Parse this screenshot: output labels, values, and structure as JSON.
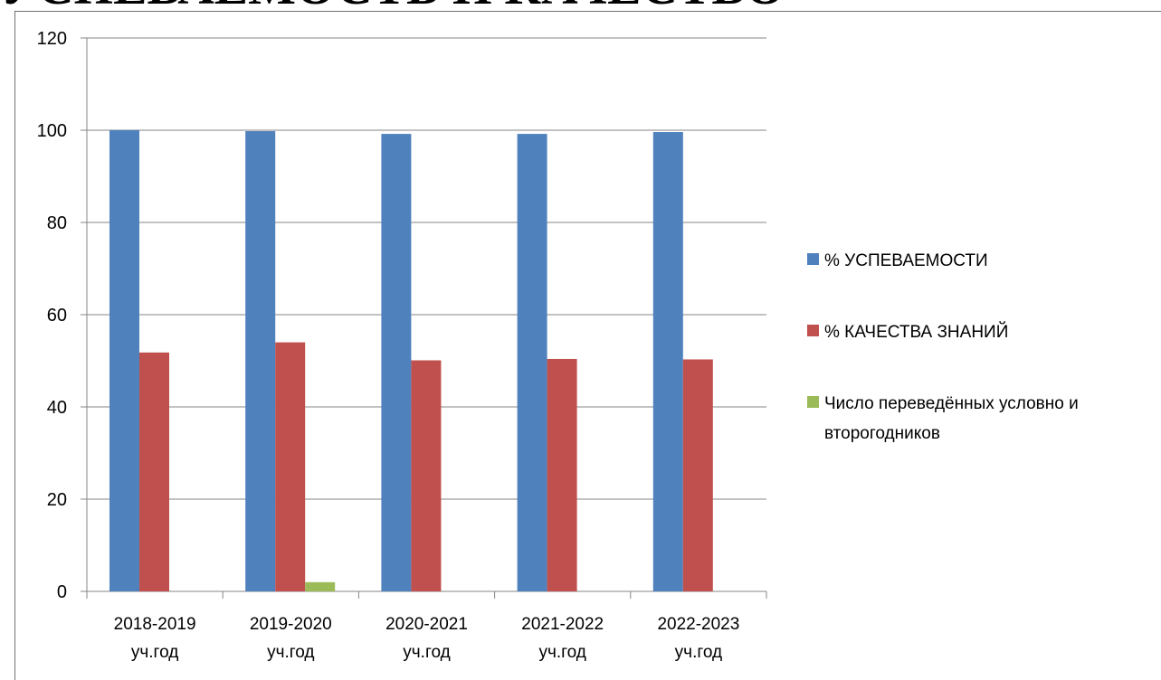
{
  "page_title_fragment": "УСПЕВАЕМОСТЬ И КАЧЕСТВО",
  "chart_data": {
    "type": "bar",
    "categories": [
      [
        "2018-2019",
        "уч.год"
      ],
      [
        "2019-2020",
        "уч.год"
      ],
      [
        "2020-2021",
        "уч.год"
      ],
      [
        "2021-2022",
        "уч.год"
      ],
      [
        "2022-2023",
        "уч.год"
      ]
    ],
    "series": [
      {
        "name": "% УСПЕВАЕМОСТИ",
        "color": "#4F81BD",
        "values": [
          100,
          99.8,
          99.2,
          99.2,
          99.6
        ]
      },
      {
        "name": "% КАЧЕСТВА ЗНАНИЙ",
        "color": "#C0504D",
        "values": [
          51.8,
          54,
          50.1,
          50.4,
          50.3
        ]
      },
      {
        "name": [
          "Число переведённых условно и",
          "второгодников"
        ],
        "color": "#9BBB59",
        "values": [
          0,
          2,
          0,
          0,
          0
        ]
      }
    ],
    "yticks": [
      0,
      20,
      40,
      60,
      80,
      100,
      120
    ],
    "ylim": [
      0,
      120
    ],
    "grid": true,
    "legend_position": "right"
  }
}
